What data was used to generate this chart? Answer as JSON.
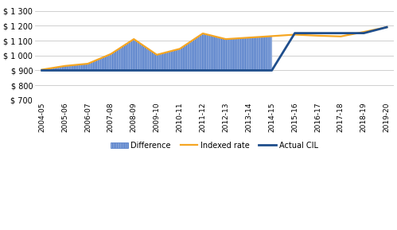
{
  "years": [
    "2004-05",
    "2005-06",
    "2006-07",
    "2007-08",
    "2008-09",
    "2009-10",
    "2010-11",
    "2011-12",
    "2012-13",
    "2013-14",
    "2014-15",
    "2015-16",
    "2016-17",
    "2017-18",
    "2018-19",
    "2019-20"
  ],
  "indexed_rate": [
    905,
    930,
    945,
    1010,
    1110,
    1005,
    1045,
    1148,
    1110,
    1120,
    1130,
    1140,
    1133,
    1128,
    1158,
    1190
  ],
  "actual_cil": [
    900,
    900,
    900,
    900,
    900,
    900,
    900,
    900,
    900,
    900,
    900,
    1150,
    1150,
    1150,
    1150,
    1190
  ],
  "indexed_color": "#F5A623",
  "actual_color": "#1F4E8C",
  "diff_fill_color": "#FFFFFF",
  "diff_edge_color": "#4472C4",
  "ylim": [
    700,
    1350
  ],
  "yticks": [
    700,
    800,
    900,
    1000,
    1100,
    1200,
    1300
  ],
  "ytick_labels": [
    "$ 700",
    "$ 800",
    "$ 900",
    "$ 1 000",
    "$ 1 100",
    "$ 1 200",
    "$ 1 300"
  ],
  "bg_color": "#ffffff",
  "grid_color": "#c8c8c8",
  "legend_labels": [
    "Difference",
    "Indexed rate",
    "Actual CIL"
  ]
}
